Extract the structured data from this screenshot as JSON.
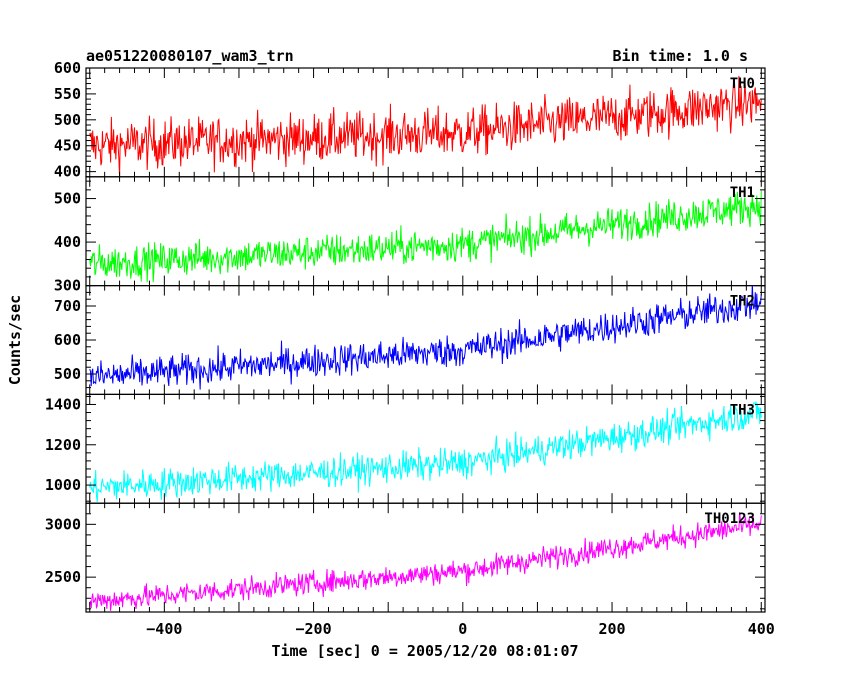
{
  "chart_data": {
    "type": "line",
    "title": "ae051220080107_wam3_trn",
    "subtitle": "Bin time: 1.0 s",
    "xlabel": "Time [sec] 0 = 2005/12/20 08:01:07",
    "ylabel": "Counts/sec",
    "xlim": [
      -505,
      405
    ],
    "x_ticks": [
      -400,
      -200,
      0,
      200,
      400
    ],
    "x_tick_labels": [
      "−400",
      "−200",
      "0",
      "200",
      "400"
    ],
    "bin_time": 1.0,
    "panels": [
      {
        "name": "TH0",
        "color": "#ff0000",
        "ylim": [
          390,
          600
        ],
        "y_tick_labels": [
          "400",
          "450",
          "500",
          "550",
          "600"
        ],
        "y_ticks": [
          400,
          450,
          500,
          550,
          600
        ],
        "trend": [
          [
            -500,
            450
          ],
          [
            0,
            475
          ],
          [
            400,
            535
          ]
        ],
        "noise_sigma": 24
      },
      {
        "name": "TH1",
        "color": "#00ff00",
        "ylim": [
          300,
          550
        ],
        "y_tick_labels": [
          "300",
          "400",
          "500"
        ],
        "y_ticks": [
          300,
          400,
          500
        ],
        "trend": [
          [
            -500,
            350
          ],
          [
            0,
            395
          ],
          [
            400,
            485
          ]
        ],
        "noise_sigma": 20
      },
      {
        "name": "TH2",
        "color": "#0000ff",
        "ylim": [
          440,
          760
        ],
        "y_tick_labels": [
          "500",
          "600",
          "700"
        ],
        "y_ticks": [
          500,
          600,
          700
        ],
        "trend": [
          [
            -500,
            490
          ],
          [
            0,
            570
          ],
          [
            400,
            710
          ]
        ],
        "noise_sigma": 24
      },
      {
        "name": "TH3",
        "color": "#00ffff",
        "ylim": [
          910,
          1450
        ],
        "y_tick_labels": [
          "1000",
          "1200",
          "1400"
        ],
        "y_ticks": [
          1000,
          1200,
          1400
        ],
        "trend": [
          [
            -500,
            985
          ],
          [
            0,
            1110
          ],
          [
            400,
            1360
          ]
        ],
        "noise_sigma": 38
      },
      {
        "name": "TH0123",
        "color": "#ff00ff",
        "ylim": [
          2170,
          3200
        ],
        "y_tick_labels": [
          "2500",
          "3000"
        ],
        "y_ticks": [
          2500,
          3000
        ],
        "trend": [
          [
            -500,
            2270
          ],
          [
            0,
            2560
          ],
          [
            400,
            3000
          ]
        ],
        "noise_sigma": 55
      }
    ]
  }
}
